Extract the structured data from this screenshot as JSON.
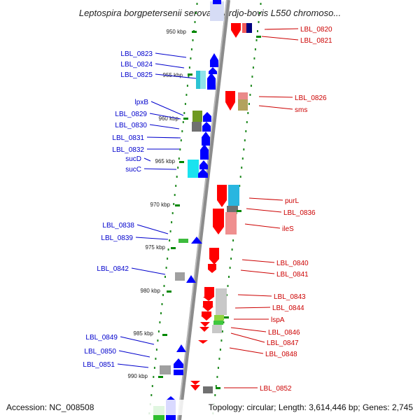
{
  "title": "Leptospira borgpetersenii serovar Hardjo-bovis L550 chromoso...",
  "footer": {
    "accession": "Accession: NC_008508",
    "summary": "Topology: circular; Length: 3,614,446 bp; Genes: 2,745"
  },
  "colors": {
    "forward": "#0000ff",
    "reverse": "#ff0000",
    "backbone": "#909090",
    "dots": "#228b22"
  },
  "scale_ticks": [
    "950 kbp",
    "955 kbp",
    "960 kbp",
    "965 kbp",
    "970 kbp",
    "975 kbp",
    "980 kbp",
    "985 kbp",
    "990 kbp"
  ],
  "left_labels": [
    "LBL_0823",
    "LBL_0824",
    "LBL_0825",
    "lpxB",
    "LBL_0829",
    "LBL_0830",
    "LBL_0831",
    "LBL_0832",
    "sucD",
    "sucC",
    "LBL_0838",
    "LBL_0839",
    "LBL_0842",
    "LBL_0849",
    "LBL_0850",
    "LBL_0851"
  ],
  "right_labels": [
    "LBL_0820",
    "LBL_0821",
    "LBL_0826",
    "sms",
    "purL",
    "LBL_0836",
    "ileS",
    "LBL_0840",
    "LBL_0841",
    "LBL_0843",
    "LBL_0844",
    "lspA",
    "LBL_0846",
    "LBL_0847",
    "LBL_0848",
    "LBL_0852"
  ]
}
